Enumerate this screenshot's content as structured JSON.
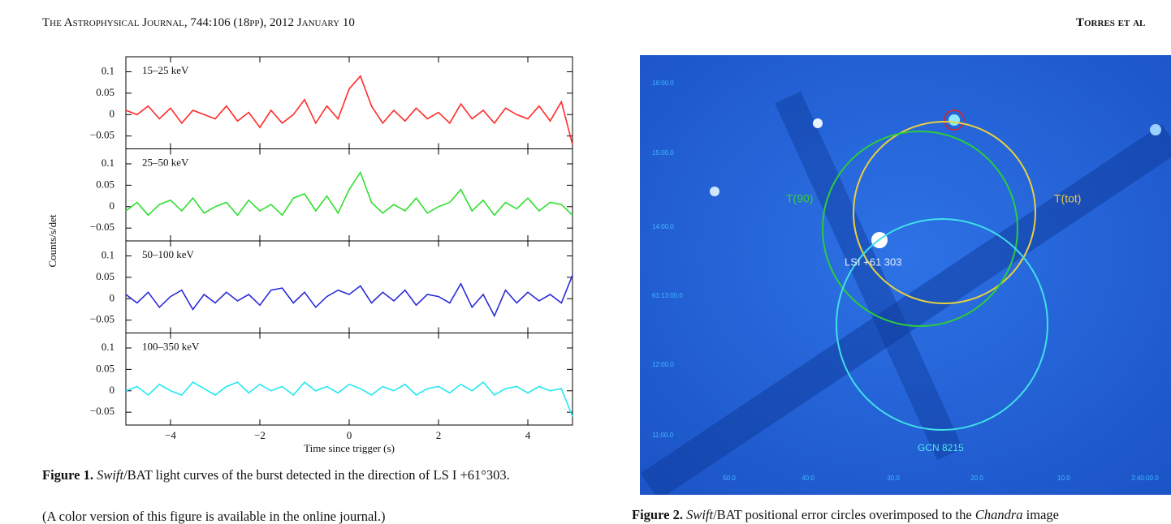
{
  "header": {
    "journal": "The Astrophysical Journal, 744:106 (18pp), 2012 January 10",
    "authors": "Torres et al"
  },
  "chart_data": [
    {
      "type": "line",
      "title": "15–25 keV",
      "ylabel": "Counts/s/det",
      "color": "#ff2a2a",
      "xlim": [
        -5,
        5
      ],
      "ylim": [
        -0.08,
        0.135
      ],
      "yticks": [
        0.1,
        0.05,
        0,
        {
          "value": -0.05,
          "label": "−0.05"
        }
      ],
      "x": [
        -5,
        -4.75,
        -4.5,
        -4.25,
        -4,
        -3.75,
        -3.5,
        -3.25,
        -3,
        -2.75,
        -2.5,
        -2.25,
        -2,
        -1.75,
        -1.5,
        -1.25,
        -1,
        -0.75,
        -0.5,
        -0.25,
        0,
        0.25,
        0.5,
        0.75,
        1,
        1.25,
        1.5,
        1.75,
        2,
        2.25,
        2.5,
        2.75,
        3,
        3.25,
        3.5,
        3.75,
        4,
        4.25,
        4.5,
        4.75,
        5
      ],
      "values": [
        0.01,
        0,
        0.02,
        -0.01,
        0.015,
        -0.02,
        0.01,
        0,
        -0.01,
        0.02,
        -0.015,
        0.005,
        -0.03,
        0.01,
        -0.02,
        0,
        0.035,
        -0.02,
        0.02,
        -0.01,
        0.06,
        0.09,
        0.02,
        -0.02,
        0.01,
        -0.015,
        0.015,
        -0.01,
        0.005,
        -0.02,
        0.025,
        -0.01,
        0.01,
        -0.02,
        0.015,
        0,
        -0.01,
        0.02,
        -0.015,
        0.03,
        -0.07
      ]
    },
    {
      "type": "line",
      "title": "25–50 keV",
      "color": "#2ee02e",
      "xlim": [
        -5,
        5
      ],
      "ylim": [
        -0.08,
        0.135
      ],
      "yticks": [
        0.1,
        0.05,
        0,
        {
          "value": -0.05,
          "label": "−0.05"
        }
      ],
      "x": [
        -5,
        -4.75,
        -4.5,
        -4.25,
        -4,
        -3.75,
        -3.5,
        -3.25,
        -3,
        -2.75,
        -2.5,
        -2.25,
        -2,
        -1.75,
        -1.5,
        -1.25,
        -1,
        -0.75,
        -0.5,
        -0.25,
        0,
        0.25,
        0.5,
        0.75,
        1,
        1.25,
        1.5,
        1.75,
        2,
        2.25,
        2.5,
        2.75,
        3,
        3.25,
        3.5,
        3.75,
        4,
        4.25,
        4.5,
        4.75,
        5
      ],
      "values": [
        -0.01,
        0.01,
        -0.02,
        0.005,
        0.015,
        -0.01,
        0.02,
        -0.015,
        0,
        0.01,
        -0.02,
        0.015,
        -0.01,
        0.005,
        -0.02,
        0.02,
        0.03,
        -0.01,
        0.025,
        -0.015,
        0.04,
        0.08,
        0.01,
        -0.015,
        0.005,
        -0.01,
        0.02,
        -0.015,
        0,
        0.01,
        0.04,
        -0.01,
        0.015,
        -0.02,
        0.01,
        -0.005,
        0.02,
        -0.01,
        0.01,
        0.005,
        -0.02
      ]
    },
    {
      "type": "line",
      "title": "50–100 keV",
      "color": "#2a2ad8",
      "xlim": [
        -5,
        5
      ],
      "ylim": [
        -0.08,
        0.135
      ],
      "yticks": [
        0.1,
        0.05,
        0,
        {
          "value": -0.05,
          "label": "−0.05"
        }
      ],
      "x": [
        -5,
        -4.75,
        -4.5,
        -4.25,
        -4,
        -3.75,
        -3.5,
        -3.25,
        -3,
        -2.75,
        -2.5,
        -2.25,
        -2,
        -1.75,
        -1.5,
        -1.25,
        -1,
        -0.75,
        -0.5,
        -0.25,
        0,
        0.25,
        0.5,
        0.75,
        1,
        1.25,
        1.5,
        1.75,
        2,
        2.25,
        2.5,
        2.75,
        3,
        3.25,
        3.5,
        3.75,
        4,
        4.25,
        4.5,
        4.75,
        5
      ],
      "values": [
        0.01,
        -0.01,
        0.015,
        -0.02,
        0.005,
        0.02,
        -0.025,
        0.01,
        -0.01,
        0.015,
        -0.005,
        0.01,
        -0.015,
        0.02,
        0.025,
        -0.01,
        0.015,
        -0.02,
        0.005,
        0.02,
        0.01,
        0.03,
        -0.01,
        0.015,
        -0.005,
        0.02,
        -0.015,
        0.01,
        0.005,
        -0.01,
        0.035,
        -0.02,
        0.01,
        -0.04,
        0.02,
        -0.01,
        0.015,
        -0.005,
        0.01,
        -0.01,
        0.055
      ]
    },
    {
      "type": "line",
      "title": "100–350 keV",
      "color": "#22e8f0",
      "xlim": [
        -5,
        5
      ],
      "ylim": [
        -0.08,
        0.135
      ],
      "xlabel": "Time since trigger (s)",
      "xticks": [
        {
          "value": -4,
          "label": "−4"
        },
        {
          "value": -2,
          "label": "−2"
        },
        0,
        2,
        4
      ],
      "yticks": [
        0.1,
        0.05,
        0,
        {
          "value": -0.05,
          "label": "−0.05"
        }
      ],
      "x": [
        -5,
        -4.75,
        -4.5,
        -4.25,
        -4,
        -3.75,
        -3.5,
        -3.25,
        -3,
        -2.75,
        -2.5,
        -2.25,
        -2,
        -1.75,
        -1.5,
        -1.25,
        -1,
        -0.75,
        -0.5,
        -0.25,
        0,
        0.25,
        0.5,
        0.75,
        1,
        1.25,
        1.5,
        1.75,
        2,
        2.25,
        2.5,
        2.75,
        3,
        3.25,
        3.5,
        3.75,
        4,
        4.25,
        4.5,
        4.75,
        5
      ],
      "values": [
        0,
        0.01,
        -0.01,
        0.015,
        0,
        -0.01,
        0.02,
        0.005,
        -0.01,
        0.01,
        0.02,
        -0.005,
        0.015,
        0,
        0.01,
        -0.01,
        0.02,
        0,
        0.01,
        -0.005,
        0.015,
        0.005,
        -0.01,
        0.01,
        0,
        0.015,
        -0.01,
        0.005,
        0.01,
        -0.005,
        0.015,
        0,
        0.02,
        -0.01,
        0.005,
        0.01,
        -0.005,
        0.01,
        0,
        0.005,
        -0.06
      ]
    }
  ],
  "figure1": {
    "caption": {
      "label": "Figure 1.",
      "parts": [
        "Swift",
        "/BAT light curves of the burst detected in the direction of LS I +61°303."
      ],
      "note": "(A color version of this figure is available in the online journal.)"
    }
  },
  "figure2": {
    "dec_labels": [
      "16:00.0",
      "15:00.0",
      "14:00.0",
      "61:13:00.0",
      "12:00.0",
      "11:00.0"
    ],
    "ra_labels": [
      "50.0",
      "40.0",
      "30.0",
      "20.0",
      "10.0",
      "2:40:00.0"
    ],
    "annotations": {
      "t90": "T(90)",
      "ttot": "T(tot)",
      "source": "LSI +61 303",
      "gcn": "GCN 8215"
    },
    "caption": {
      "label": "Figure 2.",
      "parts": [
        "Swift",
        "/BAT positional error circles overimposed to the ",
        "Chandra",
        " image"
      ]
    }
  }
}
